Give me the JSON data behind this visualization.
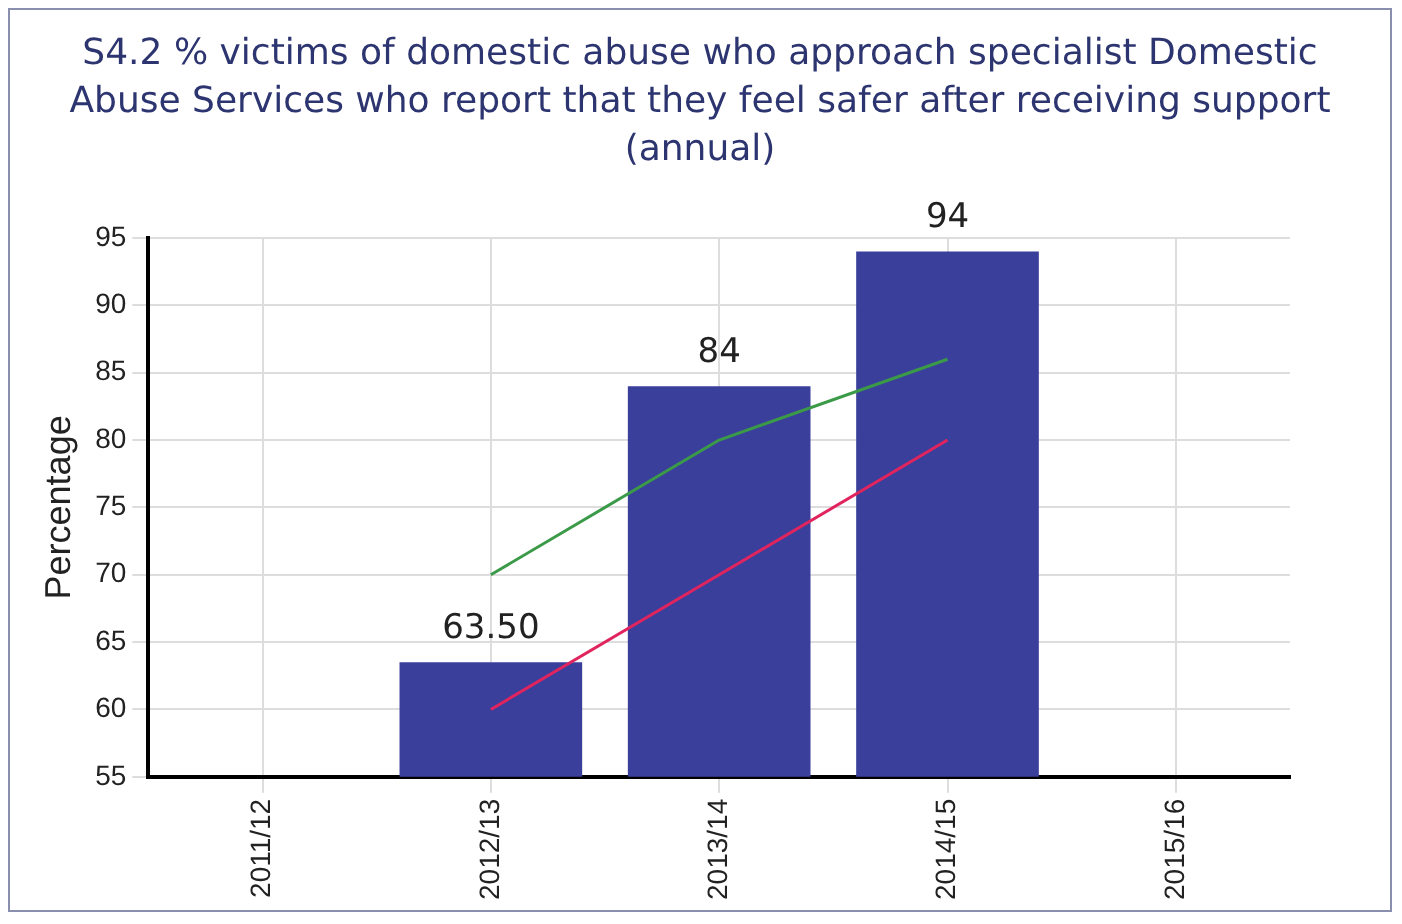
{
  "chart_data": {
    "type": "bar",
    "title": "S4.2 % victims of domestic abuse who approach specialist Domestic Abuse Services who report that they feel safer after receiving support (annual)",
    "ylabel": "Percentage",
    "categories": [
      "2011/12",
      "2012/13",
      "2013/14",
      "2014/15",
      "2015/16"
    ],
    "series": [
      {
        "color": "#3b3f9c",
        "values": [
          null,
          63.5,
          84,
          94,
          null
        ],
        "value_labels": [
          null,
          "63.50",
          "84",
          "94",
          null
        ]
      },
      {
        "type": "line",
        "color": "#3a9a48",
        "values": [
          null,
          70,
          80,
          86,
          null
        ]
      },
      {
        "type": "line",
        "color": "#e0245e",
        "values": [
          null,
          60,
          70,
          80,
          null
        ]
      }
    ],
    "ylim": [
      55,
      95
    ],
    "yticks": [
      55,
      60,
      65,
      70,
      75,
      80,
      85,
      90,
      95
    ],
    "grid": true,
    "legend": false,
    "marker": "none"
  }
}
